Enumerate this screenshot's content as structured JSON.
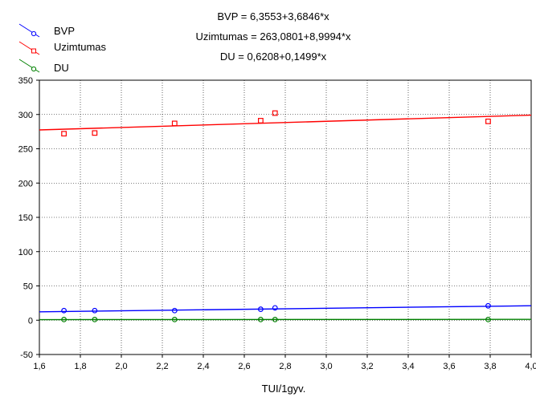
{
  "chart_data": {
    "type": "scatter",
    "xlabel": "TUI/1gyv.",
    "ylabel": "",
    "xlim": [
      1.6,
      4.0
    ],
    "ylim": [
      -50,
      350
    ],
    "x_ticks": [
      "1,6",
      "1,8",
      "2,0",
      "2,2",
      "2,4",
      "2,6",
      "2,8",
      "3,0",
      "3,2",
      "3,4",
      "3,6",
      "3,8",
      "4,0"
    ],
    "y_ticks": [
      "-50",
      "0",
      "50",
      "100",
      "150",
      "200",
      "250",
      "300",
      "350"
    ],
    "grid": true,
    "legend_position": "top-left",
    "equations": [
      "BVP = 6,3553+3,6846*x",
      "Uzimtumas = 263,0801+8,9994*x",
      "DU = 0,6208+0,1499*x"
    ],
    "series": [
      {
        "name": "BVP",
        "color": "#0000ff",
        "marker": "circle",
        "intercept": 6.3553,
        "slope": 3.6846,
        "x": [
          1.72,
          1.87,
          2.26,
          2.68,
          2.75,
          3.79
        ],
        "y": [
          14,
          14,
          14,
          16,
          18,
          21
        ]
      },
      {
        "name": "Uzimtumas",
        "color": "#ff0000",
        "marker": "square",
        "intercept": 263.0801,
        "slope": 8.9994,
        "x": [
          1.72,
          1.87,
          2.26,
          2.68,
          2.75,
          3.79
        ],
        "y": [
          272,
          273,
          287,
          291,
          302,
          290
        ]
      },
      {
        "name": "DU",
        "color": "#008000",
        "marker": "circle",
        "intercept": 0.6208,
        "slope": 0.1499,
        "x": [
          1.72,
          1.87,
          2.26,
          2.68,
          2.75,
          3.79
        ],
        "y": [
          1,
          1,
          1,
          1,
          1,
          1
        ]
      }
    ]
  }
}
